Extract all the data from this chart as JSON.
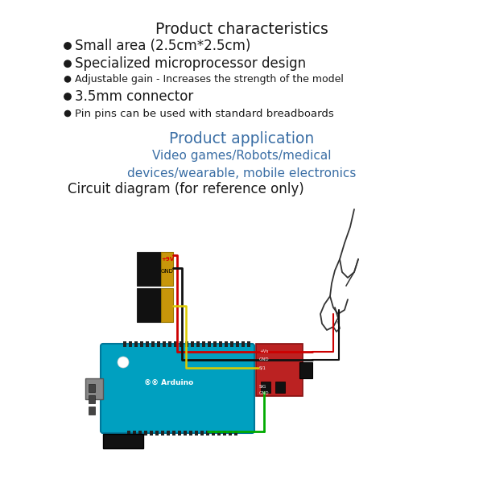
{
  "title": "Product characteristics",
  "title_color": "#1a1a1a",
  "title_fontsize": 13.5,
  "bullets": [
    {
      "text": "Small area (2.5cm*2.5cm)",
      "fontsize": 12,
      "color": "#1a1a1a",
      "large": true
    },
    {
      "text": "Specialized microprocessor design",
      "fontsize": 12,
      "color": "#1a1a1a",
      "large": true
    },
    {
      "text": "Adjustable gain - Increases the strength of the model",
      "fontsize": 9,
      "color": "#1a1a1a",
      "large": false
    },
    {
      "text": "3.5mm connector",
      "fontsize": 12,
      "color": "#1a1a1a",
      "large": true
    },
    {
      "text": "Pin pins can be used with standard breadboards",
      "fontsize": 9.5,
      "color": "#1a1a1a",
      "large": false
    }
  ],
  "section2_title": "Product application",
  "section2_title_color": "#3a6ea5",
  "section2_fontsize": 13.5,
  "section2_text": "Video games/Robots/medical\ndevices/wearable, mobile electronics",
  "section2_text_color": "#3a6ea5",
  "section2_text_fontsize": 11,
  "section3_title": "Circuit diagram (for reference only)",
  "section3_title_color": "#1a1a1a",
  "section3_title_fontsize": 12,
  "bg_color": "#ffffff",
  "arduino_color": "#00a0c0",
  "arduino_edge": "#007799",
  "battery_body": "#111111",
  "battery_gold": "#c8960a",
  "sensor_color": "#bb2222",
  "sensor_edge": "#881111",
  "usb_color": "#888888",
  "wire_red": "#cc0000",
  "wire_black": "#111111",
  "wire_green": "#00aa00",
  "wire_yellow": "#ddcc00"
}
